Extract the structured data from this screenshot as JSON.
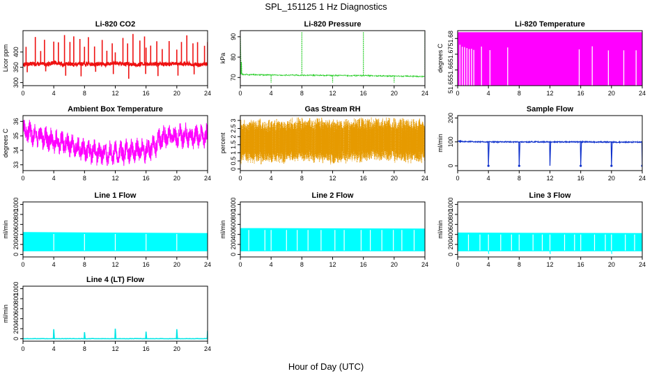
{
  "figure": {
    "title": "SPL_151125  1 Hz Diagnostics",
    "xlabel": "Hour of Day (UTC)"
  },
  "chart_data": [
    {
      "type": "line",
      "title": "Li-820 CO2",
      "xlabel": "",
      "ylabel": "Licor ppm",
      "color": "#ee1111",
      "xlim": [
        0,
        24
      ],
      "ylim": [
        290,
        470
      ],
      "xticks": [
        0,
        4,
        8,
        12,
        16,
        20,
        24
      ],
      "yticks": [
        300,
        350,
        400
      ],
      "series": [
        {
          "name": "",
          "x": [
            0,
            1,
            2,
            3,
            4,
            5,
            6,
            7,
            8,
            9,
            10,
            11,
            12,
            13,
            14,
            15,
            16,
            17,
            18,
            19,
            20,
            21,
            22,
            23,
            24
          ],
          "y": [
            360,
            362,
            361,
            360,
            365,
            361,
            360,
            359,
            362,
            360,
            361,
            360,
            364,
            361,
            360,
            359,
            362,
            360,
            361,
            360,
            364,
            361,
            360,
            358,
            360
          ]
        }
      ]
    },
    {
      "type": "line",
      "title": "Li-820 Pressure",
      "xlabel": "",
      "ylabel": "kPa",
      "color": "#22cc22",
      "xlim": [
        0,
        24
      ],
      "ylim": [
        66,
        93
      ],
      "xticks": [
        0,
        4,
        8,
        12,
        16,
        20,
        24
      ],
      "yticks": [
        70,
        80,
        90
      ],
      "series": [
        {
          "name": "",
          "x": [
            0,
            0.2,
            4,
            8,
            12,
            16,
            20,
            24
          ],
          "y": [
            90,
            71.5,
            71.2,
            71.1,
            71.0,
            70.9,
            70.7,
            70.5
          ]
        }
      ]
    },
    {
      "type": "line",
      "title": "Li-820 Temperature",
      "xlabel": "",
      "ylabel": "degrees C",
      "color": "#ff00ff",
      "xlim": [
        0,
        24
      ],
      "ylim": [
        51.65,
        51.685
      ],
      "xticks": [
        0,
        4,
        8,
        12,
        16,
        20,
        24
      ],
      "yticks": [
        51.65,
        51.66,
        51.67,
        51.68
      ],
      "series": [
        {
          "name": "",
          "x": [
            0,
            24
          ],
          "y": [
            51.65,
            51.685
          ]
        }
      ]
    },
    {
      "type": "line",
      "title": "Ambient Box Temperature",
      "xlabel": "",
      "ylabel": "degrees C",
      "color": "#ff00ff",
      "xlim": [
        0,
        24
      ],
      "ylim": [
        32.6,
        36.4
      ],
      "xticks": [
        0,
        4,
        8,
        12,
        16,
        20,
        24
      ],
      "yticks": [
        33.0,
        34.0,
        35.0,
        36.0
      ],
      "series": [
        {
          "name": "",
          "x": [
            0,
            2,
            4,
            6,
            8,
            10,
            12,
            14,
            16,
            17,
            18,
            20,
            22,
            24
          ],
          "y": [
            35.4,
            35.0,
            34.6,
            34.4,
            34.0,
            33.8,
            33.8,
            33.9,
            34.0,
            34.2,
            34.9,
            35.0,
            35.0,
            35.0
          ]
        }
      ]
    },
    {
      "type": "line",
      "title": "Gas Stream RH",
      "xlabel": "",
      "ylabel": "percent",
      "color": "#e69a00",
      "xlim": [
        0,
        24
      ],
      "ylim": [
        -0.1,
        3.3
      ],
      "xticks": [
        0,
        4,
        8,
        12,
        16,
        20,
        24
      ],
      "yticks": [
        0.0,
        0.5,
        1.0,
        1.5,
        2.0,
        2.5,
        3.0
      ],
      "series": [
        {
          "name": "",
          "x": [
            0,
            4,
            8,
            12,
            16,
            20,
            24
          ],
          "y": [
            1.7,
            1.7,
            1.8,
            1.7,
            1.8,
            1.8,
            1.7
          ]
        }
      ]
    },
    {
      "type": "line",
      "title": "Sample Flow",
      "xlabel": "",
      "ylabel": "ml/min",
      "color": "#1133cc",
      "xlim": [
        0,
        24
      ],
      "ylim": [
        -20,
        210
      ],
      "xticks": [
        0,
        4,
        8,
        12,
        16,
        20,
        24
      ],
      "yticks": [
        0,
        100,
        200
      ],
      "series": [
        {
          "name": "",
          "x": [
            0,
            4,
            8,
            12,
            16,
            20,
            24
          ],
          "y": [
            102,
            100,
            100,
            100,
            100,
            99,
            99
          ]
        }
      ]
    },
    {
      "type": "line",
      "title": "Line 1 Flow",
      "xlabel": "",
      "ylabel": "ml/min",
      "color": "#00ffff",
      "xlim": [
        0,
        24
      ],
      "ylim": [
        -50,
        1050
      ],
      "xticks": [
        0,
        4,
        8,
        12,
        16,
        20,
        24
      ],
      "yticks": [
        0,
        200,
        400,
        600,
        800,
        1000
      ],
      "series": [
        {
          "name": "",
          "x": [
            0,
            24
          ],
          "y": [
            440,
            420
          ]
        }
      ]
    },
    {
      "type": "line",
      "title": "Line 2 Flow",
      "xlabel": "",
      "ylabel": "ml/min",
      "color": "#00ffff",
      "xlim": [
        0,
        24
      ],
      "ylim": [
        -50,
        1050
      ],
      "xticks": [
        0,
        4,
        8,
        12,
        16,
        20,
        24
      ],
      "yticks": [
        0,
        200,
        400,
        600,
        800,
        1000
      ],
      "series": [
        {
          "name": "",
          "x": [
            0,
            24
          ],
          "y": [
            520,
            510
          ]
        }
      ]
    },
    {
      "type": "line",
      "title": "Line 3 Flow",
      "xlabel": "",
      "ylabel": "ml/min",
      "color": "#00ffff",
      "xlim": [
        0,
        24
      ],
      "ylim": [
        -50,
        1050
      ],
      "xticks": [
        0,
        4,
        8,
        12,
        16,
        20,
        24
      ],
      "yticks": [
        0,
        200,
        400,
        600,
        800,
        1000
      ],
      "series": [
        {
          "name": "",
          "x": [
            0,
            24
          ],
          "y": [
            430,
            420
          ]
        }
      ]
    },
    {
      "type": "line",
      "title": "Line 4 (LT) Flow",
      "xlabel": "",
      "ylabel": "ml/min",
      "color": "#00e5e5",
      "xlim": [
        0,
        24
      ],
      "ylim": [
        -50,
        1050
      ],
      "xticks": [
        0,
        4,
        8,
        12,
        16,
        20,
        24
      ],
      "yticks": [
        0,
        200,
        400,
        600,
        800,
        1000
      ],
      "series": [
        {
          "name": "",
          "x": [
            0,
            4,
            8,
            12,
            16,
            20,
            24
          ],
          "y": [
            0,
            0,
            0,
            0,
            0,
            0,
            0
          ]
        }
      ]
    }
  ]
}
